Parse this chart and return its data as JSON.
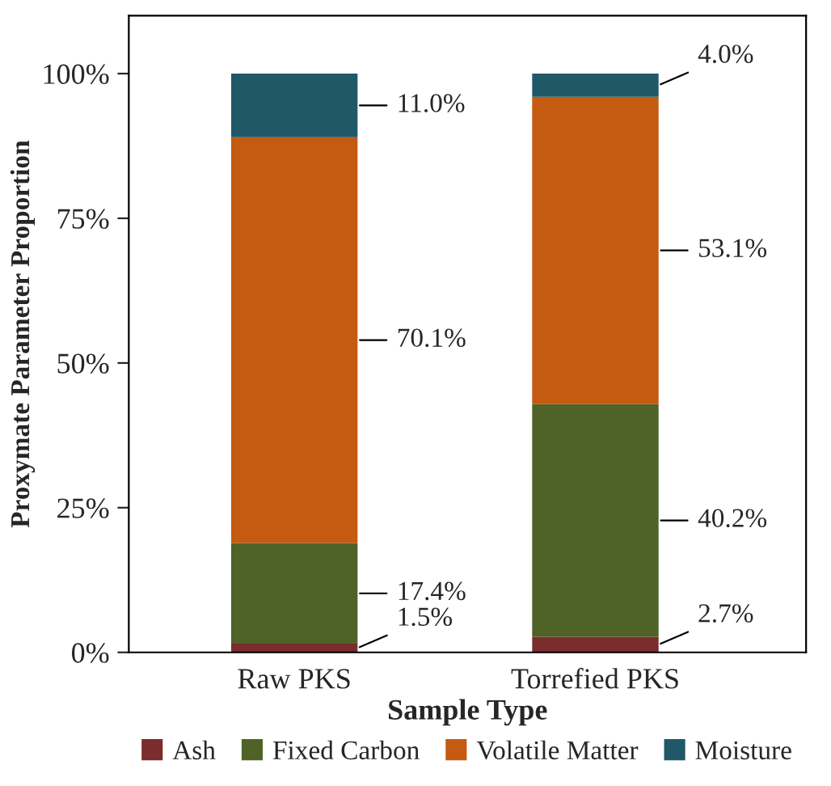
{
  "chart_data": {
    "type": "bar",
    "stacked": true,
    "xlabel": "Sample Type",
    "ylabel": "Proxymate Parameter Proportion",
    "categories": [
      "Raw PKS",
      "Torrefied PKS"
    ],
    "series": [
      {
        "name": "Ash",
        "color": "#7b2c2c",
        "values": [
          1.5,
          2.7
        ],
        "value_labels": [
          "1.5%",
          "2.7%"
        ]
      },
      {
        "name": "Fixed Carbon",
        "color": "#4f6228",
        "values": [
          17.4,
          40.2
        ],
        "value_labels": [
          "17.4%",
          "40.2%"
        ]
      },
      {
        "name": "Volatile Matter",
        "color": "#c55a11",
        "values": [
          70.1,
          53.1
        ],
        "value_labels": [
          "70.1%",
          "53.1%"
        ]
      },
      {
        "name": "Moisture",
        "color": "#215868",
        "values": [
          11.0,
          4.0
        ],
        "value_labels": [
          "11.0%",
          "4.0%"
        ]
      }
    ],
    "ylim": [
      0,
      110
    ],
    "yticks": [
      {
        "value": 0,
        "label": "0%"
      },
      {
        "value": 25,
        "label": "25%"
      },
      {
        "value": 50,
        "label": "50%"
      },
      {
        "value": 75,
        "label": "75%"
      },
      {
        "value": 100,
        "label": "100%"
      }
    ],
    "grid": false,
    "legend": "bottom"
  }
}
